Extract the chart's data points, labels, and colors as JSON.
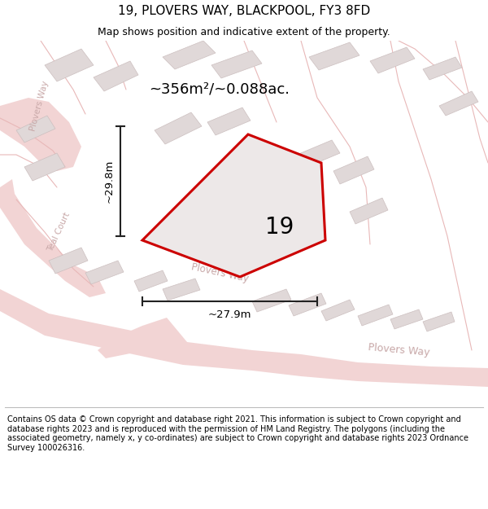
{
  "title": "19, PLOVERS WAY, BLACKPOOL, FY3 8FD",
  "subtitle": "Map shows position and indicative extent of the property.",
  "footer": "Contains OS data © Crown copyright and database right 2021. This information is subject to Crown copyright and database rights 2023 and is reproduced with the permission of HM Land Registry. The polygons (including the associated geometry, namely x, y co-ordinates) are subject to Crown copyright and database rights 2023 Ordnance Survey 100026316.",
  "area_label": "~356m²/~0.088ac.",
  "number_label": "19",
  "dim_vertical": "~29.8m",
  "dim_horizontal": "~27.9m",
  "map_bg": "#f7f2f2",
  "road_fill": "#f2d4d4",
  "road_line": "#e8b8b8",
  "building_fill": "#e0d8d8",
  "building_stroke": "#ccbfbf",
  "plot_fill": "#ede8e8",
  "plot_stroke": "#cc0000",
  "road_text": "#c8a8a8",
  "dim_color": "#222222",
  "title_fontsize": 11,
  "subtitle_fontsize": 9,
  "footer_fontsize": 7
}
